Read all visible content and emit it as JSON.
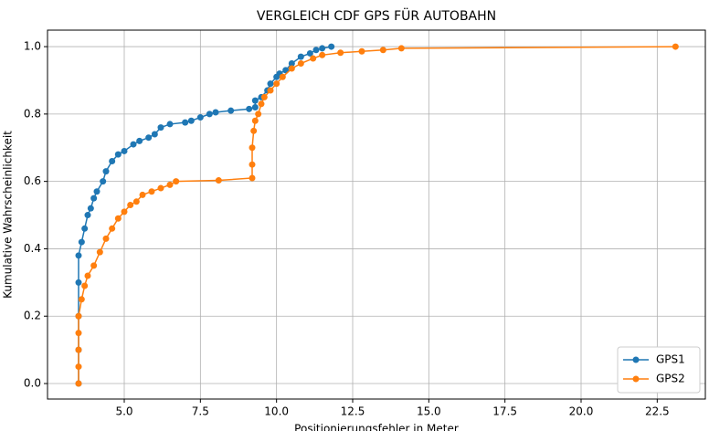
{
  "chart_data": {
    "type": "line",
    "title": "VERGLEICH CDF GPS FÜR AUTOBAHN",
    "x_label": "Positionierungsfehler in Meter",
    "y_label": "Kumulative Wahrscheinlichkeit",
    "xlim": [
      2.48,
      24.08
    ],
    "ylim": [
      -0.046,
      1.049
    ],
    "xticks": [
      {
        "value": 5,
        "label": "5.0"
      },
      7.5,
      {
        "value": 10,
        "label": "10.0"
      },
      12.5,
      {
        "value": 15,
        "label": "15.0"
      },
      17.5,
      {
        "value": 20,
        "label": "20.0"
      },
      22.5
    ],
    "yticks": [
      {
        "value": 0,
        "label": "0.0"
      },
      0.2,
      0.4,
      0.6,
      0.8,
      {
        "value": 1,
        "label": "1.0"
      }
    ],
    "grid": true,
    "legend": "lower right",
    "series": [
      {
        "name": "GPS1",
        "color": "#1f77b4",
        "x": [
          3.5,
          3.5,
          3.5,
          3.5,
          3.5,
          3.6,
          3.7,
          3.8,
          3.9,
          4.0,
          4.1,
          4.3,
          4.4,
          4.6,
          4.8,
          5.0,
          5.3,
          5.5,
          5.8,
          6.0,
          6.2,
          6.5,
          7.0,
          7.2,
          7.5,
          7.8,
          8.0,
          8.5,
          9.1,
          9.3,
          9.3,
          9.5,
          9.7,
          9.8,
          10.0,
          10.1,
          10.3,
          10.5,
          10.8,
          11.1,
          11.3,
          11.5,
          11.8
        ],
        "values": [
          0.0,
          0.1,
          0.2,
          0.3,
          0.38,
          0.42,
          0.46,
          0.5,
          0.52,
          0.55,
          0.57,
          0.6,
          0.63,
          0.66,
          0.68,
          0.69,
          0.71,
          0.72,
          0.73,
          0.74,
          0.76,
          0.77,
          0.775,
          0.78,
          0.79,
          0.8,
          0.805,
          0.81,
          0.815,
          0.82,
          0.84,
          0.85,
          0.87,
          0.89,
          0.91,
          0.92,
          0.93,
          0.95,
          0.97,
          0.98,
          0.99,
          0.995,
          1.0
        ]
      },
      {
        "name": "GPS2",
        "color": "#ff7f0e",
        "x": [
          3.5,
          3.5,
          3.5,
          3.5,
          3.5,
          3.6,
          3.7,
          3.8,
          4.0,
          4.2,
          4.4,
          4.6,
          4.8,
          5.0,
          5.2,
          5.4,
          5.6,
          5.9,
          6.2,
          6.5,
          6.7,
          8.1,
          9.2,
          9.2,
          9.2,
          9.25,
          9.3,
          9.4,
          9.5,
          9.6,
          9.8,
          10.0,
          10.2,
          10.5,
          10.8,
          11.2,
          11.5,
          12.1,
          12.8,
          13.5,
          14.1,
          23.1
        ],
        "values": [
          0.0,
          0.05,
          0.1,
          0.15,
          0.2,
          0.25,
          0.29,
          0.32,
          0.35,
          0.39,
          0.43,
          0.46,
          0.49,
          0.51,
          0.53,
          0.54,
          0.56,
          0.57,
          0.58,
          0.59,
          0.6,
          0.603,
          0.61,
          0.65,
          0.7,
          0.75,
          0.78,
          0.8,
          0.83,
          0.85,
          0.87,
          0.89,
          0.91,
          0.935,
          0.95,
          0.965,
          0.975,
          0.982,
          0.986,
          0.99,
          0.995,
          1.0
        ]
      }
    ]
  }
}
